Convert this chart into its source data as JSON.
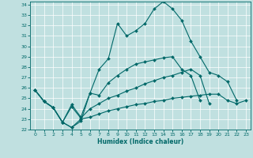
{
  "xlabel": "Humidex (Indice chaleur)",
  "background_color": "#c0e0e0",
  "line_color": "#006868",
  "xlim": [
    -0.5,
    23.5
  ],
  "ylim": [
    22,
    34.3
  ],
  "yticks": [
    22,
    23,
    24,
    25,
    26,
    27,
    28,
    29,
    30,
    31,
    32,
    33,
    34
  ],
  "xticks": [
    0,
    1,
    2,
    3,
    4,
    5,
    6,
    7,
    8,
    9,
    10,
    11,
    12,
    13,
    14,
    15,
    16,
    17,
    18,
    19,
    20,
    21,
    22,
    23
  ],
  "series": [
    {
      "x": [
        0,
        1,
        2,
        3,
        4,
        5,
        6,
        7,
        8,
        9,
        10,
        11,
        12,
        13,
        14,
        15,
        16,
        17,
        18,
        19,
        20,
        21,
        22,
        23
      ],
      "y": [
        25.8,
        24.7,
        24.1,
        22.7,
        22.2,
        22.8,
        25.5,
        27.8,
        28.8,
        32.2,
        31.0,
        31.5,
        32.2,
        33.6,
        34.3,
        33.6,
        32.5,
        30.5,
        29.0,
        27.5,
        27.2,
        26.6,
        24.8,
        null
      ]
    },
    {
      "x": [
        0,
        1,
        2,
        3,
        4,
        5,
        6,
        7,
        8,
        9,
        10,
        11,
        12,
        13,
        14,
        15,
        16,
        17,
        18,
        19,
        20,
        21,
        22,
        23
      ],
      "y": [
        25.8,
        24.7,
        24.1,
        22.7,
        24.4,
        23.2,
        25.5,
        25.3,
        26.5,
        27.2,
        27.8,
        28.3,
        28.5,
        28.7,
        28.9,
        29.0,
        27.8,
        27.2,
        24.8,
        null,
        null,
        null,
        null,
        null
      ]
    },
    {
      "x": [
        0,
        1,
        2,
        3,
        4,
        5,
        6,
        7,
        8,
        9,
        10,
        11,
        12,
        13,
        14,
        15,
        16,
        17,
        18,
        19,
        20,
        21,
        22,
        23
      ],
      "y": [
        25.8,
        24.7,
        24.1,
        22.7,
        24.2,
        23.1,
        24.0,
        24.5,
        25.0,
        25.3,
        25.7,
        26.0,
        26.4,
        26.7,
        27.0,
        27.2,
        27.5,
        27.8,
        27.2,
        24.5,
        null,
        null,
        null,
        null
      ]
    },
    {
      "x": [
        0,
        1,
        2,
        3,
        4,
        5,
        6,
        7,
        8,
        9,
        10,
        11,
        12,
        13,
        14,
        15,
        16,
        17,
        18,
        19,
        20,
        21,
        22,
        23
      ],
      "y": [
        25.8,
        24.7,
        24.1,
        22.7,
        22.2,
        23.0,
        23.2,
        23.5,
        23.8,
        24.0,
        24.2,
        24.4,
        24.5,
        24.7,
        24.8,
        25.0,
        25.1,
        25.2,
        25.3,
        25.4,
        25.4,
        24.8,
        24.5,
        24.8
      ]
    }
  ]
}
